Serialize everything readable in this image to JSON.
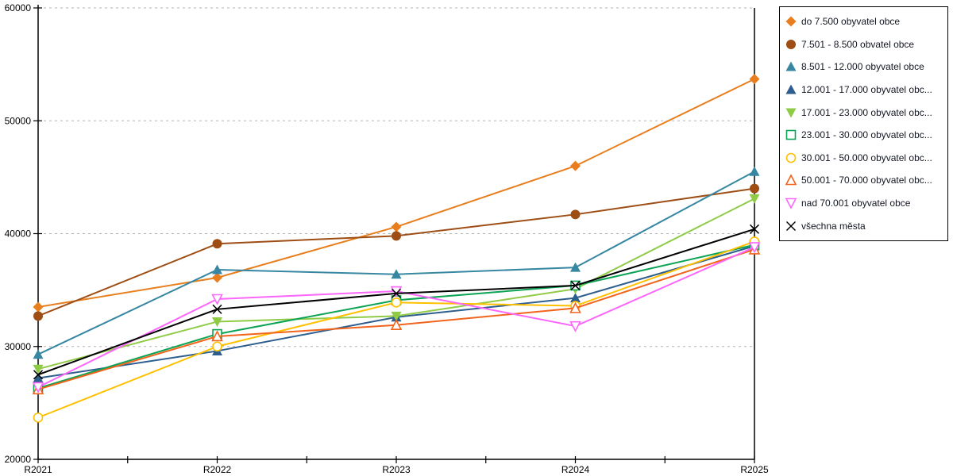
{
  "chart_data": {
    "type": "line",
    "title": "",
    "xlabel": "",
    "ylabel": "",
    "x_categories": [
      "R2021",
      "R2022",
      "R2023",
      "R2024",
      "R2025"
    ],
    "ylim": [
      20000,
      60000
    ],
    "y_ticks": [
      20000,
      30000,
      40000,
      50000,
      60000
    ],
    "grid": "horizontal-dashed",
    "legend_position": "outside-top-right",
    "series": [
      {
        "name": "do 7.500 obyvatel obce",
        "marker": "diamond-filled",
        "color": "#E87E1E",
        "values": [
          33500,
          36100,
          40600,
          46000,
          53700
        ]
      },
      {
        "name": "7.501 - 8.500 obvatel obce",
        "marker": "circle-filled",
        "color": "#9E4E14",
        "values": [
          32700,
          39100,
          39800,
          41700,
          44000
        ]
      },
      {
        "name": "8.501 - 12.000 obyvatel obce",
        "marker": "triangle-up-filled",
        "color": "#3787A3",
        "values": [
          29300,
          36800,
          36400,
          37000,
          45500
        ]
      },
      {
        "name": "12.001 - 17.000 obyvatel obc...",
        "marker": "triangle-up-filled",
        "color": "#2E5E8E",
        "values": [
          27200,
          29600,
          32600,
          34300,
          38900
        ]
      },
      {
        "name": "17.001 - 23.000 obyvatel obc...",
        "marker": "triangle-down-filled",
        "color": "#8FCB45",
        "values": [
          28000,
          32200,
          32700,
          35100,
          43100
        ]
      },
      {
        "name": "23.001 - 30.000 obyvatel obc...",
        "marker": "square-open",
        "color": "#0CA355",
        "values": [
          26300,
          31100,
          34100,
          35400,
          39000
        ]
      },
      {
        "name": "30.001 - 50.000 obyvatel obc...",
        "marker": "circle-open",
        "color": "#FFC000",
        "values": [
          23700,
          30000,
          33900,
          33600,
          39300
        ]
      },
      {
        "name": "50.001 - 70.000 obyvatel obc...",
        "marker": "triangle-up-open",
        "color": "#F2641C",
        "values": [
          26200,
          30900,
          31900,
          33400,
          38600
        ]
      },
      {
        "name": "nad 70.001 obyvatel obce",
        "marker": "triangle-down-open",
        "color": "#FB66FB",
        "values": [
          26400,
          34200,
          34900,
          31800,
          38800
        ]
      },
      {
        "name": "všechna města",
        "marker": "x",
        "color": "#000000",
        "values": [
          27500,
          33300,
          34700,
          35400,
          40400
        ]
      }
    ],
    "axis_color": "#000000",
    "gridline_color": "#B3B3B3"
  }
}
